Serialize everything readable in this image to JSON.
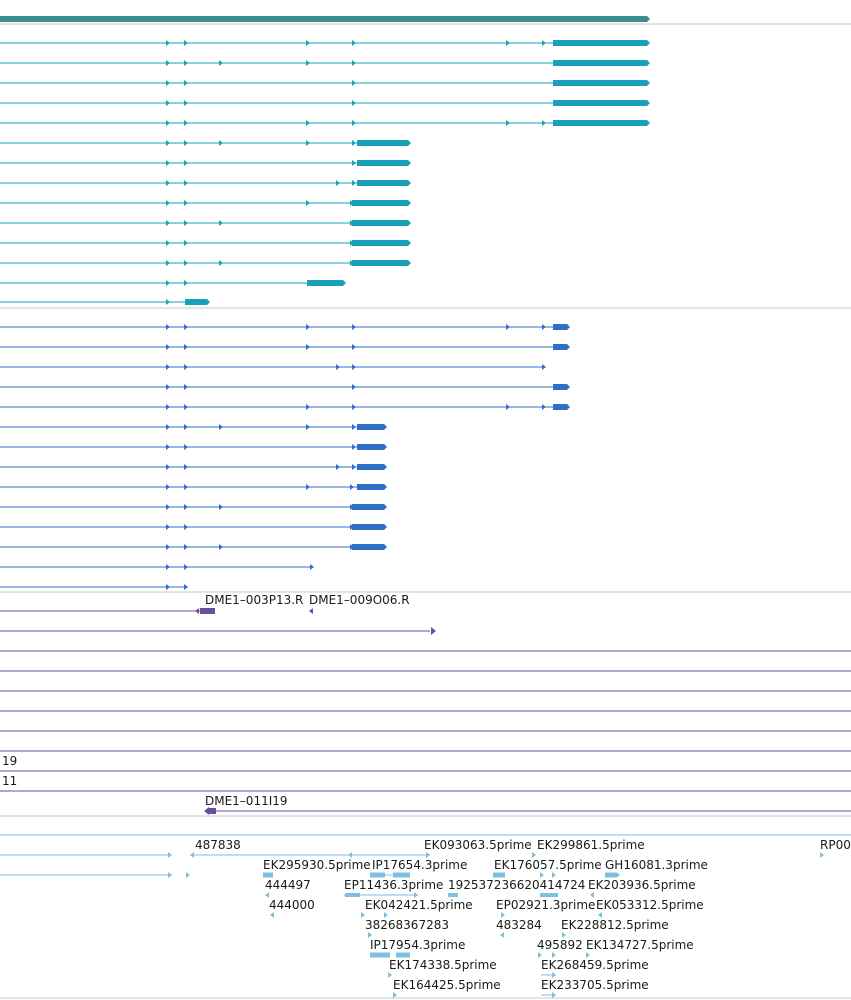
{
  "colors": {
    "gene_span": "#3a8f8c",
    "transcript_teal": "#1aa0bb",
    "transcript_blue": "#2f6fcc",
    "clone_purple": "#6a4f9f",
    "est_light": "#7fbfe0",
    "divider": "#c8c8c8"
  },
  "icons": {
    "intron_arrow": "right-triangle-icon",
    "est_arrow": "light-blue-triangle-icon"
  },
  "clone_labels": {
    "row1_a": "DME1–003P13.R",
    "row1_b": "DME1–009O06.R",
    "row_19": "19",
    "row_11": "11",
    "row_last": "DME1–011I19"
  },
  "est_labels": [
    "487838",
    "EK093063.5prime",
    "EK299861.5prime",
    "RP00",
    "EK295930.5prime",
    "IP17654.3prime",
    "EK176057.5prime",
    "GH16081.3prime",
    "444497",
    "EP11436.3prime",
    "192537236620414724",
    "EK203936.5prime",
    "444000",
    "EK042421.5prime",
    "EP02921.3prime",
    "EK053312.5prime",
    "38268367283",
    "483284",
    "EK228812.5prime",
    "IP17954.3prime",
    "495892",
    "EK134727.5prime",
    "EK174338.5prime",
    "EK268459.5prime",
    "EK164425.5prime",
    "EK233705.5prime"
  ]
}
